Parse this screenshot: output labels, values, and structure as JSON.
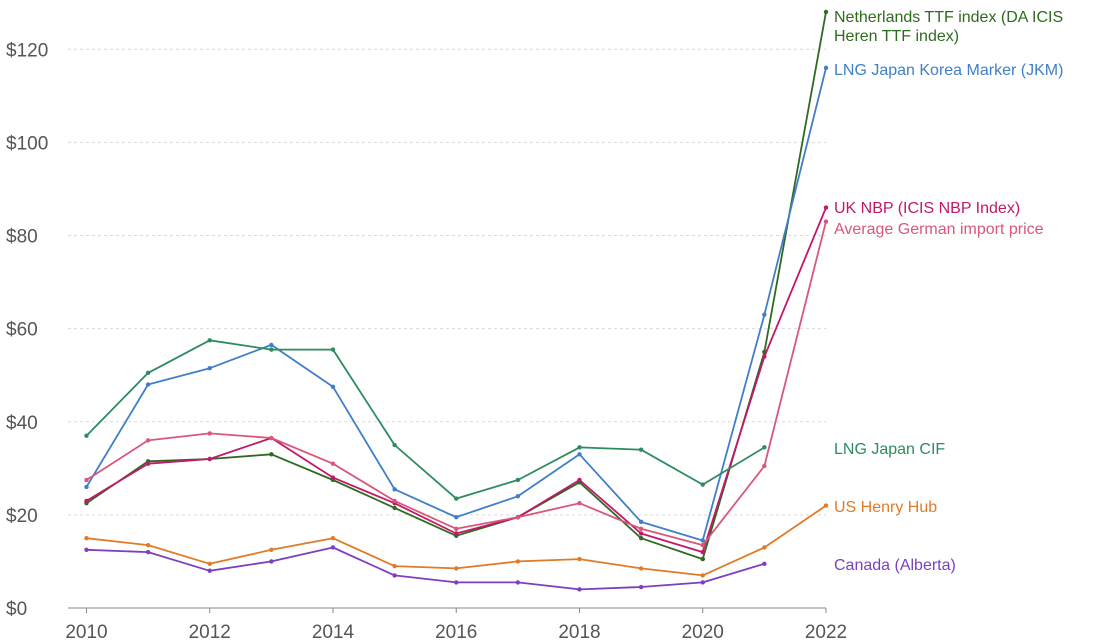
{
  "chart_data": {
    "type": "line",
    "title": "",
    "xlabel": "",
    "ylabel": "",
    "ylim": [
      0,
      128
    ],
    "xlim": [
      2009.7,
      2022
    ],
    "y_ticks": [
      "$0",
      "$20",
      "$40",
      "$60",
      "$80",
      "$100",
      "$120"
    ],
    "y_tick_values": [
      0,
      20,
      40,
      60,
      80,
      100,
      120
    ],
    "x_ticks": [
      "2010",
      "2012",
      "2014",
      "2016",
      "2018",
      "2020",
      "2022"
    ],
    "x_tick_values": [
      2010,
      2012,
      2014,
      2016,
      2018,
      2020,
      2022
    ],
    "grid": true,
    "series": [
      {
        "name": "Netherlands TTF index (DA ICIS Heren TTF index)",
        "label_lines": [
          "Netherlands TTF index (DA ICIS",
          "Heren TTF index)"
        ],
        "color": "#2e6b1f",
        "x": [
          2010,
          2011,
          2012,
          2013,
          2014,
          2015,
          2016,
          2017,
          2018,
          2019,
          2020,
          2021,
          2022
        ],
        "y": [
          22.5,
          31.5,
          32,
          33,
          27.5,
          21.5,
          15.5,
          19.5,
          27,
          15,
          10.5,
          55,
          128
        ]
      },
      {
        "name": "LNG Japan Korea Marker (JKM)",
        "label_lines": [
          "LNG Japan Korea Marker (JKM)"
        ],
        "color": "#3f7fc8",
        "x": [
          2010,
          2011,
          2012,
          2013,
          2014,
          2015,
          2016,
          2017,
          2018,
          2019,
          2020,
          2021,
          2022
        ],
        "y": [
          26,
          48,
          51.5,
          56.5,
          47.5,
          25.5,
          19.5,
          24,
          33,
          18.5,
          14.5,
          63,
          116
        ]
      },
      {
        "name": "UK NBP (ICIS NBP Index)",
        "label_lines": [
          "UK NBP (ICIS NBP Index)"
        ],
        "color": "#c2186b",
        "x": [
          2010,
          2011,
          2012,
          2013,
          2014,
          2015,
          2016,
          2017,
          2018,
          2019,
          2020,
          2021,
          2022
        ],
        "y": [
          23,
          31,
          32,
          36.5,
          28,
          22.5,
          16,
          19.5,
          27.5,
          16,
          12,
          54,
          86
        ]
      },
      {
        "name": "Average German import price",
        "label_lines": [
          "Average German import price"
        ],
        "color": "#d9587a",
        "x": [
          2010,
          2011,
          2012,
          2013,
          2014,
          2015,
          2016,
          2017,
          2018,
          2019,
          2020,
          2021,
          2022
        ],
        "y": [
          27.5,
          36,
          37.5,
          36.5,
          31,
          23,
          17,
          19.5,
          22.5,
          17,
          13.5,
          30.5,
          83
        ]
      },
      {
        "name": "LNG Japan CIF",
        "label_lines": [
          "LNG Japan CIF"
        ],
        "color": "#2e8b5f",
        "x": [
          2010,
          2011,
          2012,
          2013,
          2014,
          2015,
          2016,
          2017,
          2018,
          2019,
          2020,
          2021
        ],
        "y": [
          37,
          50.5,
          57.5,
          55.5,
          55.5,
          35,
          23.5,
          27.5,
          34.5,
          34,
          26.5,
          34.5
        ]
      },
      {
        "name": "US Henry Hub",
        "label_lines": [
          "US Henry Hub"
        ],
        "color": "#e07b28",
        "x": [
          2010,
          2011,
          2012,
          2013,
          2014,
          2015,
          2016,
          2017,
          2018,
          2019,
          2020,
          2021,
          2022
        ],
        "y": [
          15,
          13.5,
          9.5,
          12.5,
          15,
          9,
          8.5,
          10,
          10.5,
          8.5,
          7,
          13,
          22
        ]
      },
      {
        "name": "Canada (Alberta)",
        "label_lines": [
          "Canada (Alberta)"
        ],
        "color": "#7b3fbf",
        "x": [
          2010,
          2011,
          2012,
          2013,
          2014,
          2015,
          2016,
          2017,
          2018,
          2019,
          2020,
          2021
        ],
        "y": [
          12.5,
          12,
          8,
          10,
          13,
          7,
          5.5,
          5.5,
          4,
          4.5,
          5.5,
          9.5
        ]
      }
    ]
  }
}
